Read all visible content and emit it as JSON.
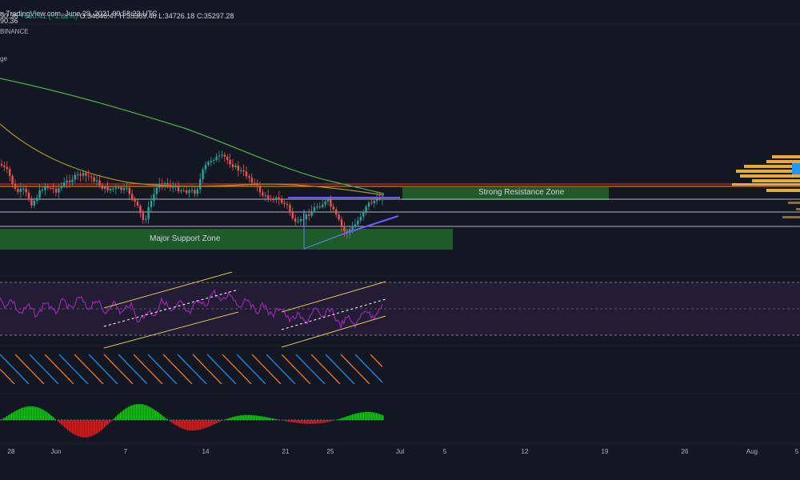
{
  "header": {
    "source": "n TradingView.com, June 29, 2021 09:58:23 UTC",
    "price_partial": "90.36",
    "change": "+630.41 (+1.82%)",
    "open": "O:34848.47",
    "high": "H:35389.40",
    "low": "L:34726.18",
    "close": "C:35297.28"
  },
  "exchange": "BINANCE",
  "indicator_partial": "ge",
  "zones": {
    "resistance": "Strong Resistance Zone",
    "support": "Major Support Zone"
  },
  "x_axis": {
    "ticks": [
      "28",
      "Jun",
      "7",
      "14",
      "21",
      "25",
      "Jul",
      "5",
      "12",
      "19",
      "26",
      "Aug",
      "5"
    ]
  },
  "colors": {
    "background": "#131722",
    "up": "#26a69a",
    "down": "#ef5350",
    "rsi": "#9c27b0",
    "channel": "#e0c060",
    "resistance_zone": "#1e5a2a",
    "support_zone": "#1e5a2a",
    "trendline": "#6a5cff",
    "ma_green": "#4caf50",
    "ma_olive": "#a8952c",
    "osc_blue": "#2196f3",
    "osc_orange": "#ff7f27",
    "hist_green": "#1fbf1f",
    "hist_red": "#c62828",
    "volume_profile": "#e8a93a"
  }
}
